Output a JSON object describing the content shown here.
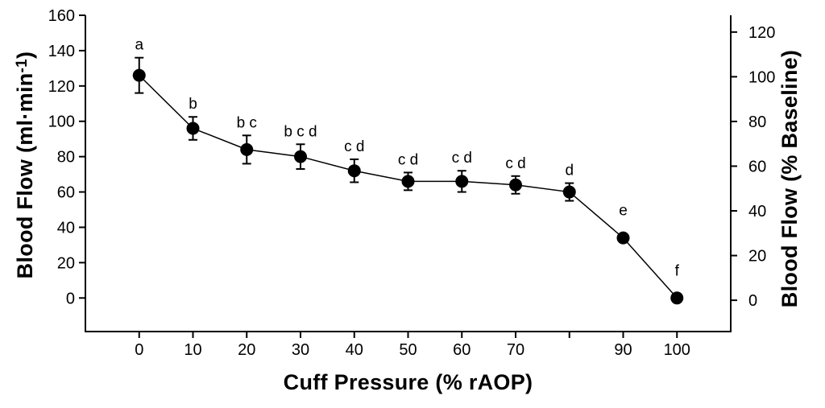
{
  "chart_data": {
    "type": "line",
    "title": "",
    "xlabel": "Cuff Pressure (% rAOP)",
    "ylabel_left": "Blood Flow (ml·min⁻¹)",
    "ylabel_left_parts": {
      "base": "Blood Flow (ml·min",
      "sup": "-1",
      "end": ")"
    },
    "ylabel_right": "Blood Flow (% Baseline)",
    "x": [
      0,
      10,
      20,
      30,
      40,
      50,
      60,
      70,
      80,
      90,
      100
    ],
    "values_ml_min": [
      126,
      96,
      84,
      80,
      72,
      66,
      66,
      64,
      60,
      34,
      0
    ],
    "errors_ml_min": [
      10,
      6.5,
      8,
      7,
      6.5,
      5,
      6,
      5,
      5,
      0,
      0
    ],
    "values_pct_baseline": [
      101,
      77,
      67,
      64,
      58,
      53,
      53,
      51,
      48,
      27,
      0
    ],
    "sig_letters": [
      "a",
      "b",
      "b c",
      "b c d",
      "c d",
      "c d",
      "c d",
      "c d",
      "d",
      "e",
      "f"
    ],
    "x_ticks": {
      "values": [
        0,
        10,
        20,
        30,
        40,
        50,
        60,
        70,
        80,
        90,
        100
      ],
      "labels": [
        "0",
        "10",
        "20",
        "30",
        "40",
        "50",
        "60",
        "70",
        "",
        "90",
        "100"
      ]
    },
    "y_left_ticks": [
      160,
      140,
      120,
      100,
      80,
      60,
      40,
      20,
      0
    ],
    "y_right_ticks": [
      120,
      100,
      80,
      60,
      40,
      20,
      0
    ],
    "x_range": [
      -10,
      110
    ],
    "y_left_range": [
      -19,
      160
    ],
    "y_right_range": [
      -14,
      127.5
    ],
    "marker": "filled-circle",
    "grid": false,
    "legend": false,
    "color": "#000000",
    "background": "#ffffff"
  }
}
